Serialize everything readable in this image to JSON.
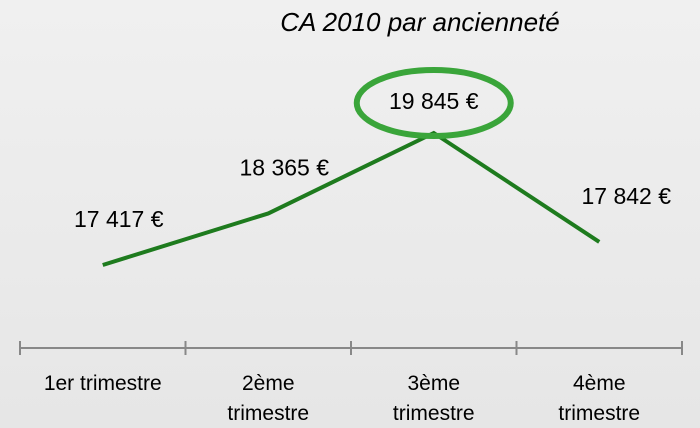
{
  "chart_data": {
    "type": "line",
    "title": "CA 2010 par ancienneté",
    "categories": [
      "1er trimestre",
      "2ème trimestre",
      "3ème trimestre",
      "4ème trimestre"
    ],
    "values": [
      17417,
      18365,
      19845,
      17842
    ],
    "value_labels": [
      "17 417 €",
      "18 365 €",
      "19 845 €",
      "17 842 €"
    ],
    "color": "#1e7b1e"
  }
}
